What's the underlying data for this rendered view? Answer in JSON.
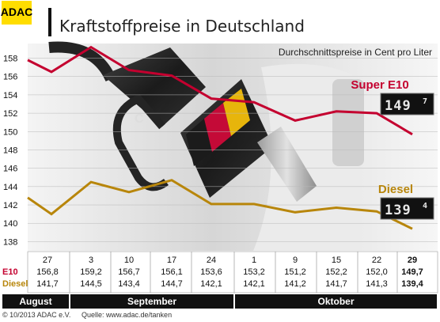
{
  "brand": {
    "logo": "ADAC",
    "accent": "#ffdd00"
  },
  "header": {
    "title": "Kraftstoffpreise in Deutschland",
    "subtitle": "Durchschnittspreise in Cent pro Liter"
  },
  "footer": {
    "copyright": "© 10/2013  ADAC e.V.",
    "source": "Quelle: www.adac.de/tanken"
  },
  "table": {
    "row_labels": [
      "E10",
      "Diesel"
    ],
    "row_label_colors": [
      "#c4002f",
      "#b8860b"
    ],
    "months": [
      {
        "name": "August",
        "span": [
          0,
          0
        ]
      },
      {
        "name": "September",
        "span": [
          1,
          4
        ]
      },
      {
        "name": "Oktober",
        "span": [
          5,
          9
        ]
      }
    ]
  },
  "displays": {
    "e10": {
      "main": "149",
      "small": "7"
    },
    "diesel": {
      "main": "139",
      "small": "4"
    }
  },
  "chart_data": {
    "type": "line",
    "title": "Kraftstoffpreise in Deutschland",
    "subtitle": "Durchschnittspreise in Cent pro Liter",
    "categories": [
      "27",
      "3",
      "10",
      "17",
      "24",
      "1",
      "9",
      "15",
      "22",
      "29"
    ],
    "series": [
      {
        "name": "Super E10",
        "color": "#c4002f",
        "values": [
          156.8,
          159.2,
          156.7,
          156.1,
          153.6,
          153.2,
          151.2,
          152.2,
          152.0,
          149.7
        ],
        "labels": [
          "156,8",
          "159,2",
          "156,7",
          "156,1",
          "153,6",
          "153,2",
          "151,2",
          "152,2",
          "152,0",
          "149,7"
        ]
      },
      {
        "name": "Diesel",
        "color": "#b8860b",
        "values": [
          141.7,
          144.5,
          143.4,
          144.7,
          142.1,
          142.1,
          141.2,
          141.7,
          141.3,
          139.4
        ],
        "labels": [
          "141,7",
          "144,5",
          "143,4",
          "144,7",
          "142,1",
          "142,1",
          "141,2",
          "141,7",
          "141,3",
          "139,4"
        ]
      }
    ],
    "line_values": {
      "Super E10": [
        157.8,
        156.5,
        159.2,
        156.7,
        156.1,
        153.6,
        153.2,
        151.2,
        152.2,
        152.0,
        149.7
      ],
      "Diesel": [
        142.8,
        141.0,
        144.5,
        143.4,
        144.7,
        142.1,
        142.1,
        141.2,
        141.7,
        141.3,
        139.4
      ]
    },
    "yticks": [
      138,
      140,
      142,
      144,
      146,
      148,
      150,
      152,
      154,
      156,
      158
    ],
    "ylim": [
      137,
      159.6
    ],
    "grid": true,
    "legend": "right, inline labels"
  }
}
